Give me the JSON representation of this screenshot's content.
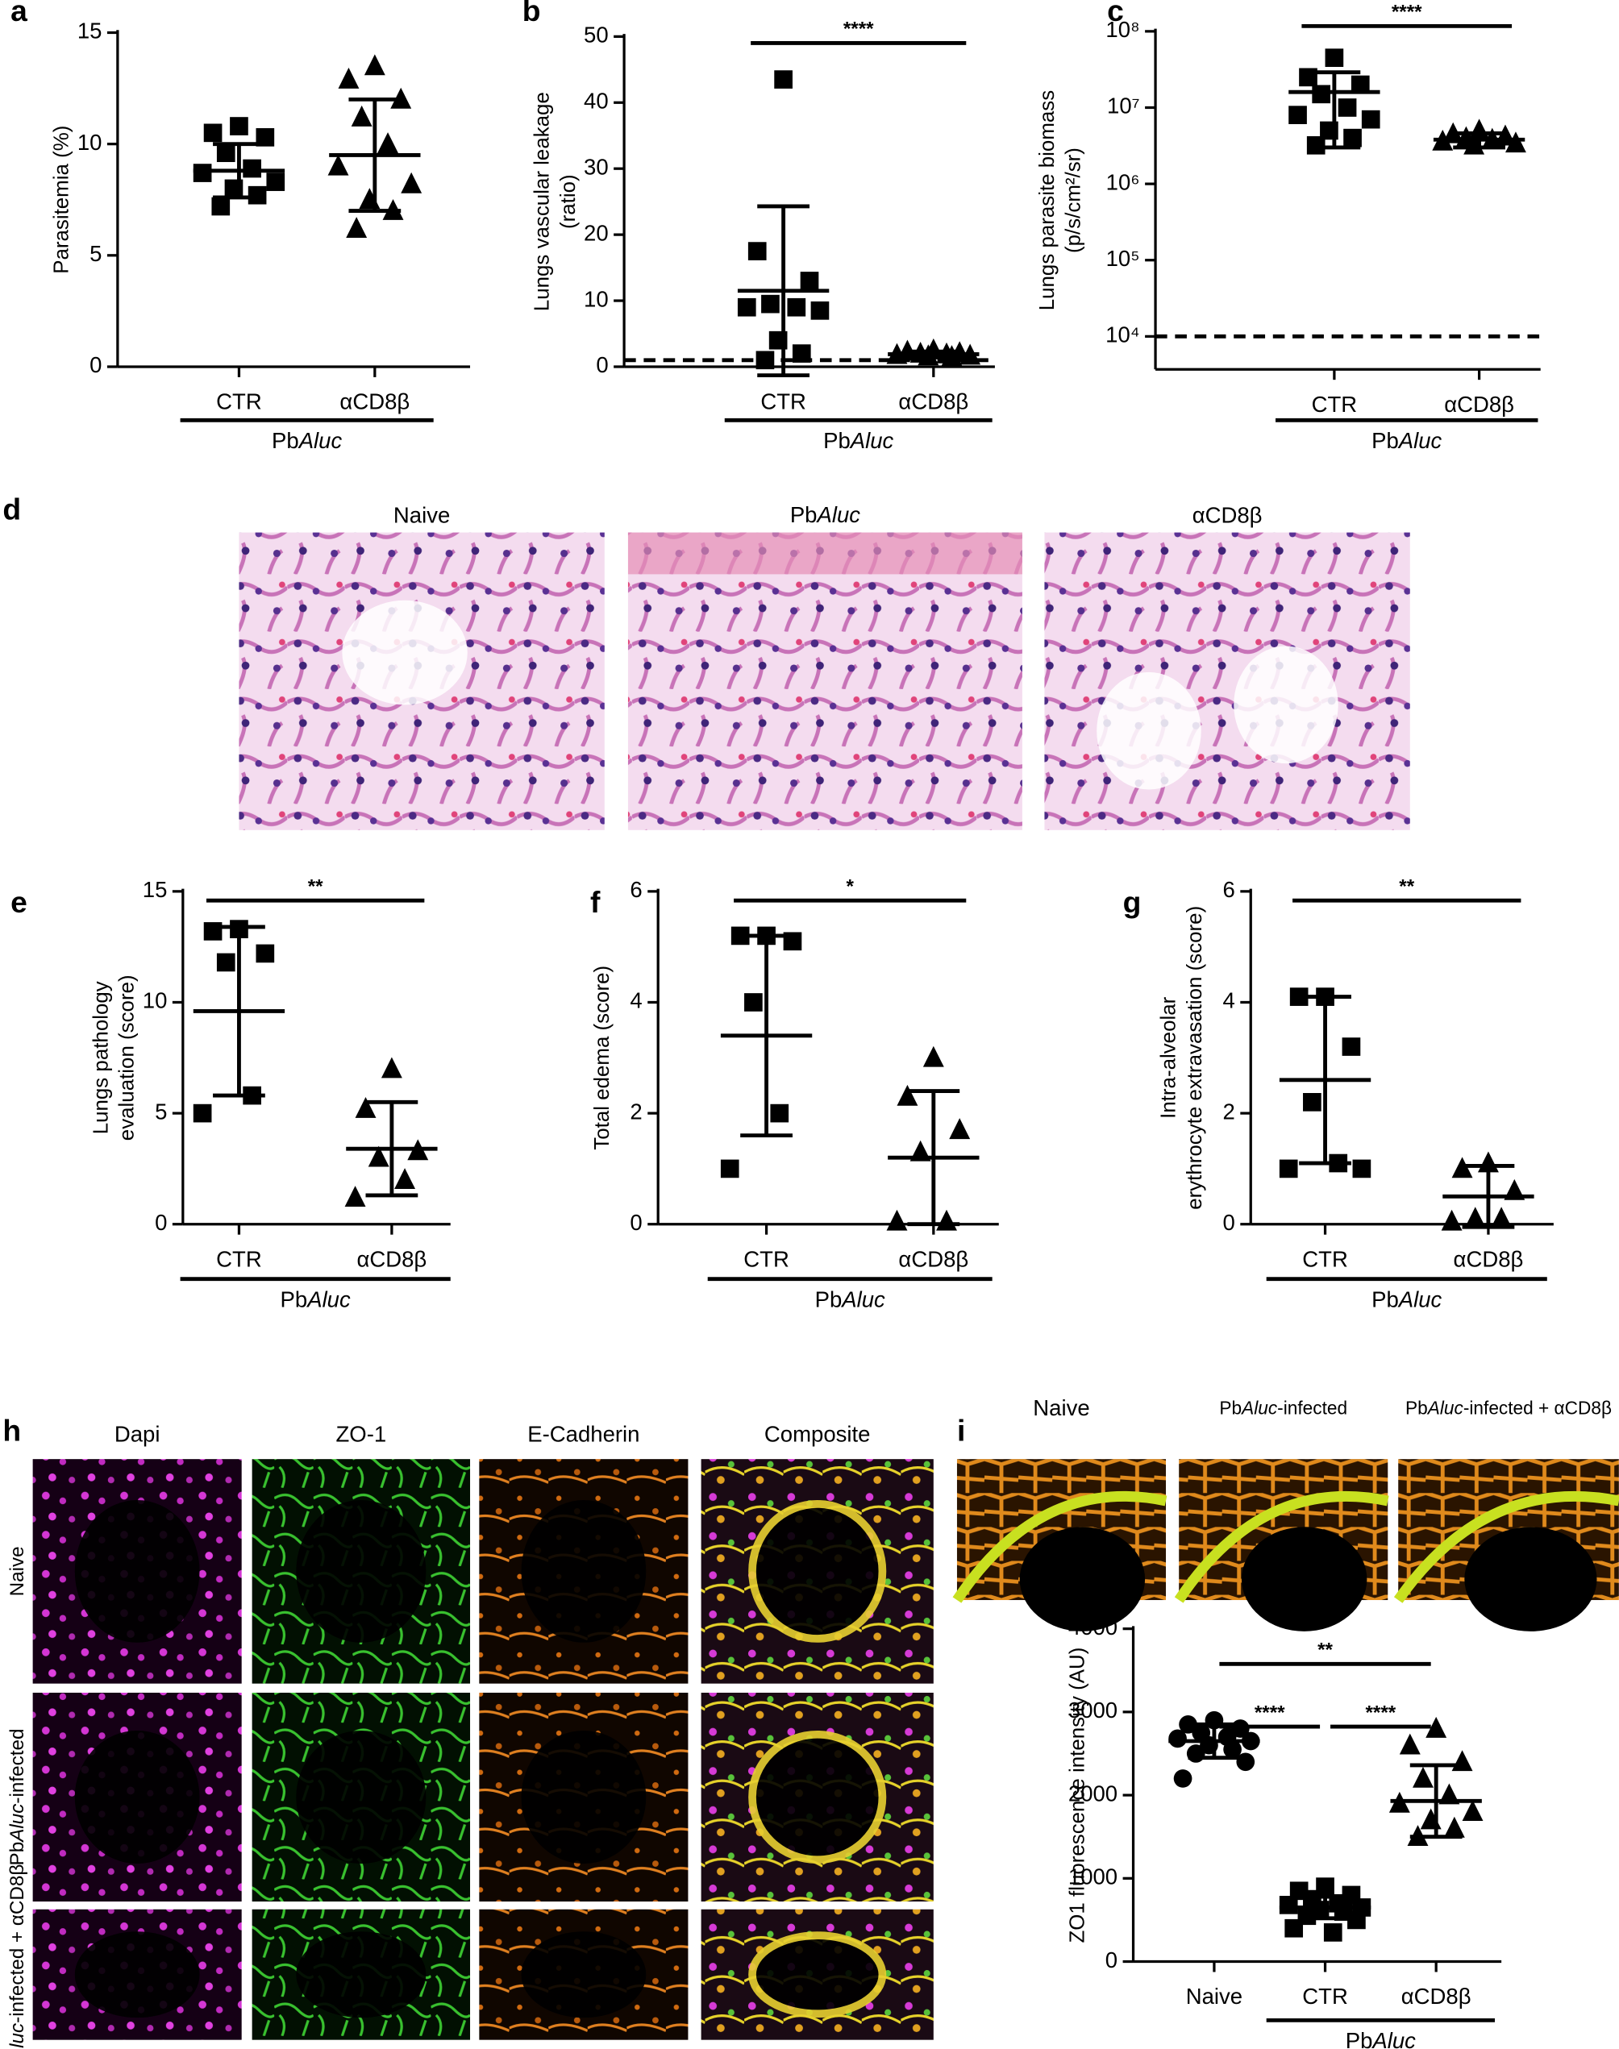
{
  "chart_data": [
    {
      "type": "scatter",
      "panel": "a",
      "ylabel": [
        "Parasitemia (%)"
      ],
      "ylim": [
        0,
        15
      ],
      "yticks": [
        0,
        5,
        10,
        15
      ],
      "log": false,
      "color": "#000000",
      "categories": [
        "CTR",
        "αCD8β"
      ],
      "groups": [
        {
          "marker": "square",
          "values": [
            10.8,
            10.5,
            10.3,
            9.6,
            8.9,
            8.7,
            8.3,
            8.0,
            7.7,
            7.2
          ],
          "mean": 8.8,
          "sd": 1.2
        },
        {
          "marker": "triangle",
          "values": [
            13.5,
            12.9,
            12.0,
            11.2,
            10.0,
            9.0,
            8.2,
            7.5,
            7.0,
            6.2
          ],
          "mean": 9.5,
          "sd": 2.5
        }
      ],
      "group": {
        "label": [
          "Pb",
          "Aluc"
        ],
        "span": [
          0,
          1
        ]
      },
      "significance": []
    },
    {
      "type": "scatter",
      "panel": "b",
      "ylabel": [
        "Lungs vascular leakage",
        "(ratio)"
      ],
      "ylim": [
        0,
        50
      ],
      "yticks": [
        0,
        10,
        20,
        30,
        40,
        50
      ],
      "log": false,
      "color": "#000000",
      "categories": [
        "CTR",
        "αCD8β"
      ],
      "groups": [
        {
          "marker": "square",
          "values": [
            43.5,
            17.5,
            13,
            9.5,
            9,
            9,
            8.5,
            4,
            2,
            1
          ],
          "mean": 11.5,
          "sd": 12.8
        },
        {
          "marker": "triangle",
          "values": [
            2.5,
            2.3,
            2.1,
            2.0,
            1.9,
            1.8,
            1.7,
            1.6,
            1.5
          ],
          "mean": 1.9,
          "sd": 0.4
        }
      ],
      "reference_line": 1,
      "group": {
        "label": [
          "Pb",
          "Aluc"
        ],
        "span": [
          0,
          1
        ]
      },
      "significance": [
        {
          "span": [
            0,
            1
          ],
          "label": "****"
        }
      ]
    },
    {
      "type": "scatter",
      "panel": "c",
      "ylabel": [
        "Lungs parasite biomass",
        "(p/s/cm²/sr)"
      ],
      "ylim": [
        3700,
        100000000
      ],
      "yticks": [
        {
          "value": 10000,
          "label": "10⁴"
        },
        {
          "value": 100000,
          "label": "10⁵"
        },
        {
          "value": 1000000,
          "label": "10⁶"
        },
        {
          "value": 10000000,
          "label": "10⁷"
        },
        {
          "value": 100000000,
          "label": "10⁸"
        }
      ],
      "log": true,
      "color": "#000000",
      "categories": [
        "CTR",
        "αCD8β"
      ],
      "groups": [
        {
          "marker": "square",
          "values": [
            45000000,
            25000000,
            20000000,
            15000000,
            10000000,
            8000000,
            7000000,
            5000000,
            4000000,
            3200000
          ],
          "mean": 16000000,
          "sd": 13000000
        },
        {
          "marker": "triangle",
          "values": [
            5000000,
            4500000,
            4200000,
            4000000,
            3800000,
            3600000,
            3400000,
            3200000
          ],
          "mean": 3800000,
          "sd": 800000
        }
      ],
      "reference_line": 10000,
      "group": {
        "label": [
          "Pb",
          "Aluc"
        ],
        "span": [
          0,
          1
        ]
      },
      "significance": [
        {
          "span": [
            0,
            1
          ],
          "label": "****"
        }
      ]
    },
    {
      "type": "scatter",
      "panel": "e",
      "ylabel": [
        "Lungs pathology",
        "evaluation (score)"
      ],
      "ylim": [
        0,
        15
      ],
      "yticks": [
        0,
        5,
        10,
        15
      ],
      "log": false,
      "color": "#000000",
      "categories": [
        "CTR",
        "αCD8β"
      ],
      "groups": [
        {
          "marker": "square",
          "values": [
            13.3,
            13.2,
            12.2,
            11.8,
            5.8,
            5.0
          ],
          "mean": 9.6,
          "sd": 3.8
        },
        {
          "marker": "triangle",
          "values": [
            7.0,
            5.2,
            3.3,
            3.0,
            2.0,
            1.2
          ],
          "mean": 3.4,
          "sd": 2.1
        }
      ],
      "group": {
        "label": [
          "Pb",
          "Aluc"
        ],
        "span": [
          0,
          1
        ]
      },
      "significance": [
        {
          "span": [
            0,
            1
          ],
          "label": "**"
        }
      ]
    },
    {
      "type": "scatter",
      "panel": "f",
      "ylabel": [
        "Total edema (score)"
      ],
      "ylim": [
        0,
        6
      ],
      "yticks": [
        0,
        2,
        4,
        6
      ],
      "log": false,
      "color": "#000000",
      "categories": [
        "CTR",
        "αCD8β"
      ],
      "groups": [
        {
          "marker": "square",
          "values": [
            5.2,
            5.2,
            5.1,
            4.0,
            2.0,
            1.0
          ],
          "mean": 3.4,
          "sd": 1.8
        },
        {
          "marker": "triangle",
          "values": [
            3.0,
            2.3,
            1.7,
            1.3,
            0.05,
            0.05
          ],
          "mean": 1.2,
          "sd": 1.2
        }
      ],
      "group": {
        "label": [
          "Pb",
          "Aluc"
        ],
        "span": [
          0,
          1
        ]
      },
      "significance": [
        {
          "span": [
            0,
            1
          ],
          "label": "*"
        }
      ]
    },
    {
      "type": "scatter",
      "panel": "g",
      "ylabel": [
        "Intra-alveolar",
        "erythrocyte extravasation (score)"
      ],
      "ylim": [
        0,
        6
      ],
      "yticks": [
        0,
        2,
        4,
        6
      ],
      "log": false,
      "color": "#000000",
      "categories": [
        "CTR",
        "αCD8β"
      ],
      "groups": [
        {
          "marker": "square",
          "values": [
            4.1,
            4.1,
            3.2,
            2.2,
            1.1,
            1.0,
            1.0
          ],
          "mean": 2.6,
          "sd": 1.5
        },
        {
          "marker": "triangle",
          "values": [
            1.1,
            1.0,
            0.6,
            0.1,
            0.1,
            0.05
          ],
          "mean": 0.5,
          "sd": 0.55
        }
      ],
      "group": {
        "label": [
          "Pb",
          "Aluc"
        ],
        "span": [
          0,
          1
        ]
      },
      "significance": [
        {
          "span": [
            0,
            1
          ],
          "label": "**"
        }
      ]
    },
    {
      "type": "scatter",
      "ylabel": [
        "ZO1 fluorescence intensity (AU)"
      ],
      "ylim": [
        0,
        4000
      ],
      "yticks": [
        0,
        1000,
        2000,
        3000,
        4000
      ],
      "log": false,
      "color": "#000000",
      "categories": [
        "Naive",
        "CTR",
        "αCD8β"
      ],
      "groups": [
        {
          "marker": "circle",
          "values": [
            2900,
            2850,
            2800,
            2750,
            2700,
            2680,
            2650,
            2600,
            2550,
            2500,
            2400,
            2200
          ],
          "mean": 2650,
          "sd": 200
        },
        {
          "marker": "square",
          "values": [
            900,
            850,
            800,
            750,
            700,
            680,
            650,
            620,
            600,
            550,
            500,
            400,
            350
          ],
          "mean": 650,
          "sd": 130
        },
        {
          "marker": "triangle",
          "values": [
            2800,
            2600,
            2400,
            2200,
            2000,
            1900,
            1800,
            1700,
            1600,
            1500
          ],
          "mean": 1930,
          "sd": 430
        }
      ],
      "group": {
        "label": [
          "Pb",
          "Aluc"
        ],
        "span": [
          1,
          2
        ]
      },
      "significance": [
        {
          "span": [
            0,
            2
          ],
          "label": "**"
        },
        {
          "span": [
            0,
            1
          ],
          "label": "****"
        },
        {
          "span": [
            1,
            2
          ],
          "label": "****"
        }
      ]
    }
  ],
  "histology_d": {
    "panel": "d",
    "titles": [
      "Naive",
      [
        "Pb",
        "Aluc"
      ],
      "αCD8β"
    ]
  },
  "immunofluorescence_h": {
    "panel": "h",
    "columns": [
      "Dapi",
      "ZO-1",
      "E-Cadherin",
      "Composite"
    ],
    "rows": [
      "Naive",
      [
        "Pb",
        "Aluc",
        "-infected"
      ],
      [
        "Pb",
        "Aluc",
        "-infected + αCD8β"
      ]
    ]
  },
  "immunofluorescence_i": {
    "panel": "i",
    "titles": [
      "Naive",
      [
        "Pb",
        "Aluc",
        "-infected"
      ],
      [
        "Pb",
        "Aluc",
        "-infected + αCD8β"
      ]
    ]
  }
}
